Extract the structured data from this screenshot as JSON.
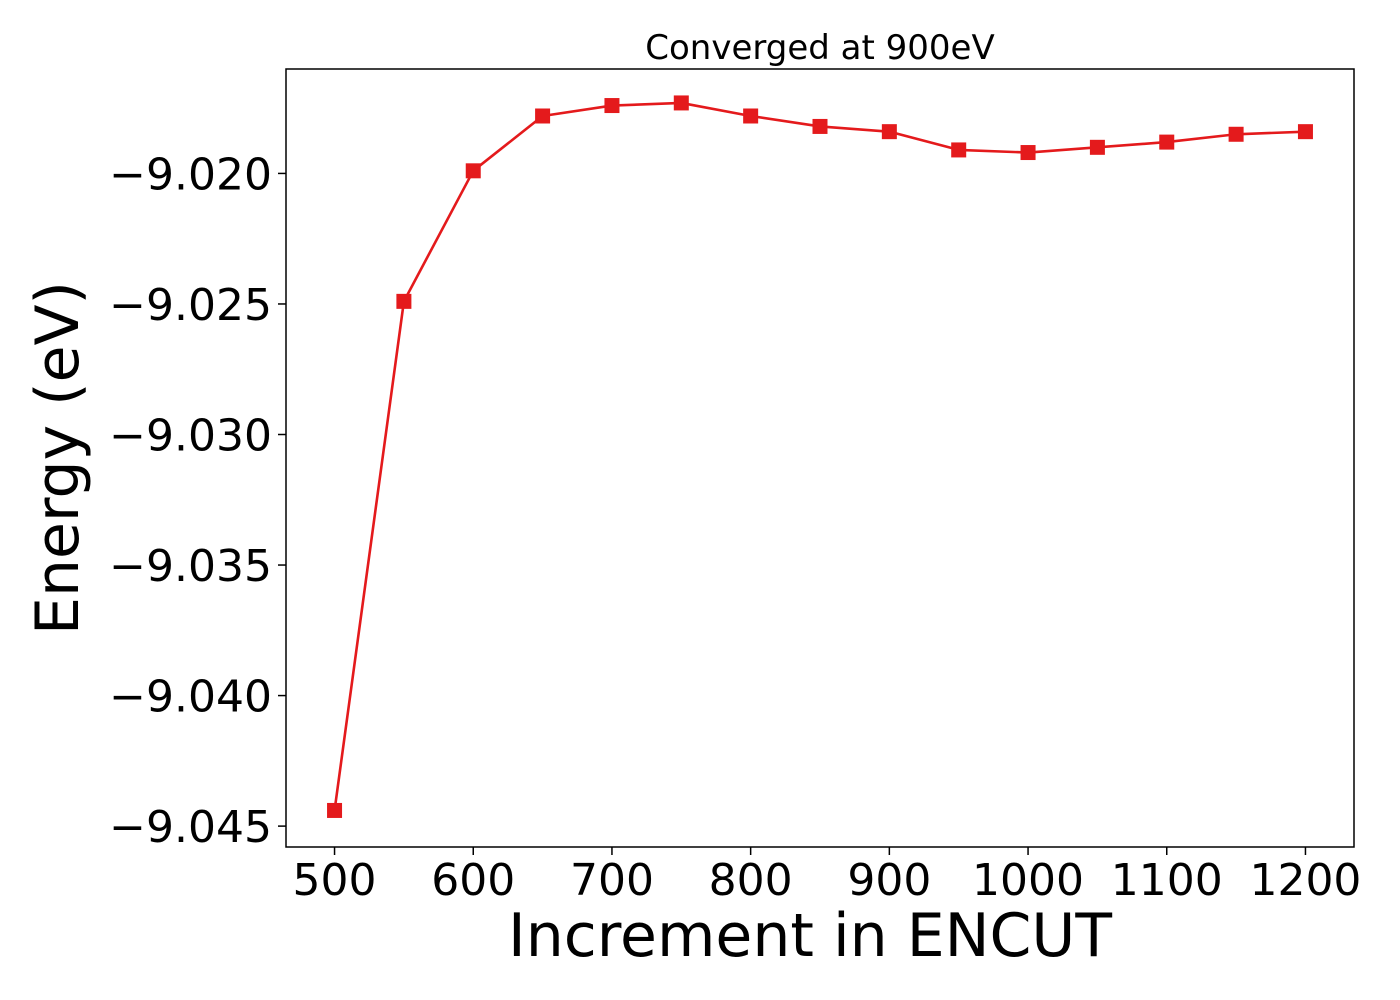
{
  "chart_data": {
    "type": "line",
    "title": "Converged at 900eV",
    "xlabel": "Increment in ENCUT",
    "ylabel": "Energy (eV)",
    "x": [
      500,
      550,
      600,
      650,
      700,
      750,
      800,
      850,
      900,
      950,
      1000,
      1050,
      1100,
      1150,
      1200
    ],
    "series": [
      {
        "values": [
          -9.0444,
          -9.0249,
          -9.0199,
          -9.0178,
          -9.0174,
          -9.0173,
          -9.0178,
          -9.0182,
          -9.0184,
          -9.0191,
          -9.0192,
          -9.019,
          -9.0188,
          -9.0185,
          -9.0184
        ],
        "color": "#e41a1c",
        "marker": "square"
      }
    ],
    "xlim": [
      465,
      1235
    ],
    "ylim": [
      -9.0458,
      -9.016
    ],
    "xticks": [
      500,
      600,
      700,
      800,
      900,
      1000,
      1100,
      1200
    ],
    "xtick_labels": [
      "500",
      "600",
      "700",
      "800",
      "900",
      "1000",
      "1100",
      "1200"
    ],
    "yticks": [
      -9.02,
      -9.025,
      -9.03,
      -9.035,
      -9.04,
      -9.045
    ],
    "ytick_labels": [
      "−9.020",
      "−9.025",
      "−9.030",
      "−9.035",
      "−9.040",
      "−9.045"
    ],
    "grid": false,
    "legend": "none"
  }
}
